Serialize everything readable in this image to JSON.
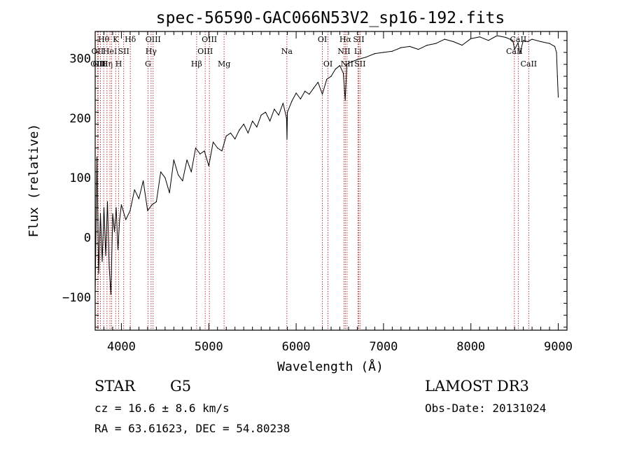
{
  "chart_data": {
    "type": "line",
    "title": "spec-56590-GAC066N53V2_sp16-192.fits",
    "xlabel": "Wavelength (Å)",
    "ylabel": "Flux (relative)",
    "xlim": [
      3700,
      9100
    ],
    "ylim": [
      -155,
      345
    ],
    "xticks": [
      4000,
      5000,
      6000,
      7000,
      8000,
      9000
    ],
    "yticks": [
      -100,
      0,
      100,
      200,
      300
    ],
    "line_color": "#000000",
    "marker_color": "#b22222",
    "series": [
      {
        "name": "flux",
        "x": [
          3700,
          3720,
          3740,
          3760,
          3780,
          3800,
          3820,
          3840,
          3860,
          3880,
          3900,
          3920,
          3940,
          3960,
          3980,
          4000,
          4050,
          4100,
          4150,
          4200,
          4250,
          4300,
          4350,
          4400,
          4450,
          4500,
          4550,
          4600,
          4650,
          4700,
          4750,
          4800,
          4850,
          4900,
          4950,
          5000,
          5050,
          5100,
          5150,
          5200,
          5250,
          5300,
          5350,
          5400,
          5450,
          5500,
          5550,
          5600,
          5650,
          5700,
          5750,
          5800,
          5850,
          5890,
          5895,
          5900,
          5950,
          6000,
          6050,
          6100,
          6150,
          6200,
          6250,
          6300,
          6350,
          6400,
          6450,
          6500,
          6540,
          6562,
          6580,
          6600,
          6650,
          6700,
          6750,
          6800,
          6900,
          7000,
          7100,
          7200,
          7300,
          7400,
          7500,
          7600,
          7700,
          7800,
          7900,
          8000,
          8100,
          8200,
          8300,
          8400,
          8480,
          8500,
          8540,
          8560,
          8600,
          8650,
          8700,
          8800,
          8900,
          8960,
          8980,
          8990,
          9000
        ],
        "y": [
          -90,
          135,
          -60,
          40,
          -40,
          50,
          -30,
          60,
          -50,
          -95,
          40,
          10,
          50,
          -20,
          30,
          55,
          30,
          45,
          80,
          65,
          95,
          45,
          55,
          60,
          110,
          100,
          75,
          130,
          105,
          95,
          130,
          110,
          150,
          140,
          145,
          120,
          160,
          150,
          145,
          170,
          175,
          165,
          180,
          190,
          175,
          195,
          185,
          205,
          210,
          195,
          215,
          205,
          225,
          200,
          165,
          210,
          228,
          242,
          232,
          245,
          240,
          250,
          260,
          240,
          265,
          270,
          282,
          288,
          275,
          230,
          290,
          292,
          295,
          298,
          300,
          302,
          308,
          310,
          312,
          318,
          320,
          315,
          322,
          325,
          332,
          328,
          322,
          333,
          336,
          330,
          338,
          335,
          330,
          315,
          326,
          308,
          330,
          328,
          332,
          328,
          325,
          320,
          310,
          270,
          235
        ]
      }
    ],
    "line_markers": [
      {
        "wl": 3727,
        "label": "OII",
        "row": 1
      },
      {
        "wl": 3734,
        "label": "OIII",
        "row": 2
      },
      {
        "wl": 3760,
        "label": "OIII",
        "row": 2
      },
      {
        "wl": 3797,
        "label": "Hθ",
        "row": 0
      },
      {
        "wl": 3835,
        "label": "Hη",
        "row": 2
      },
      {
        "wl": 3869,
        "label": "HeI",
        "row": 1
      },
      {
        "wl": 3889,
        "label": "",
        "row": 0
      },
      {
        "wl": 3934,
        "label": "K",
        "row": 0
      },
      {
        "wl": 3969,
        "label": "H",
        "row": 2
      },
      {
        "wl": 4026,
        "label": "SII",
        "row": 1
      },
      {
        "wl": 4102,
        "label": "Hδ",
        "row": 0
      },
      {
        "wl": 4304,
        "label": "G",
        "row": 2
      },
      {
        "wl": 4340,
        "label": "Hγ",
        "row": 1
      },
      {
        "wl": 4363,
        "label": "OIII",
        "row": 0
      },
      {
        "wl": 4861,
        "label": "Hβ",
        "row": 2
      },
      {
        "wl": 4959,
        "label": "OIII",
        "row": 1
      },
      {
        "wl": 5007,
        "label": "OIII",
        "row": 0
      },
      {
        "wl": 5175,
        "label": "Mg",
        "row": 2
      },
      {
        "wl": 5894,
        "label": "Na",
        "row": 1
      },
      {
        "wl": 6300,
        "label": "OI",
        "row": 0
      },
      {
        "wl": 6364,
        "label": "OI",
        "row": 2
      },
      {
        "wl": 6548,
        "label": "NII",
        "row": 1
      },
      {
        "wl": 6563,
        "label": "Hα",
        "row": 0
      },
      {
        "wl": 6583,
        "label": "NII",
        "row": 2
      },
      {
        "wl": 6707,
        "label": "Li",
        "row": 1
      },
      {
        "wl": 6716,
        "label": "SII",
        "row": 0
      },
      {
        "wl": 6731,
        "label": "SII",
        "row": 2
      },
      {
        "wl": 8498,
        "label": "CaII",
        "row": 1
      },
      {
        "wl": 8542,
        "label": "CaII",
        "row": 0
      },
      {
        "wl": 8662,
        "label": "CaII",
        "row": 2
      }
    ]
  },
  "info": {
    "class": "STAR",
    "subclass": "G5",
    "cz": "cz = 16.6 ± 8.6 km/s",
    "radec": "RA =  63.61623, DEC =  54.80238",
    "survey": "LAMOST DR3",
    "obsdate": "Obs-Date: 20131024"
  }
}
